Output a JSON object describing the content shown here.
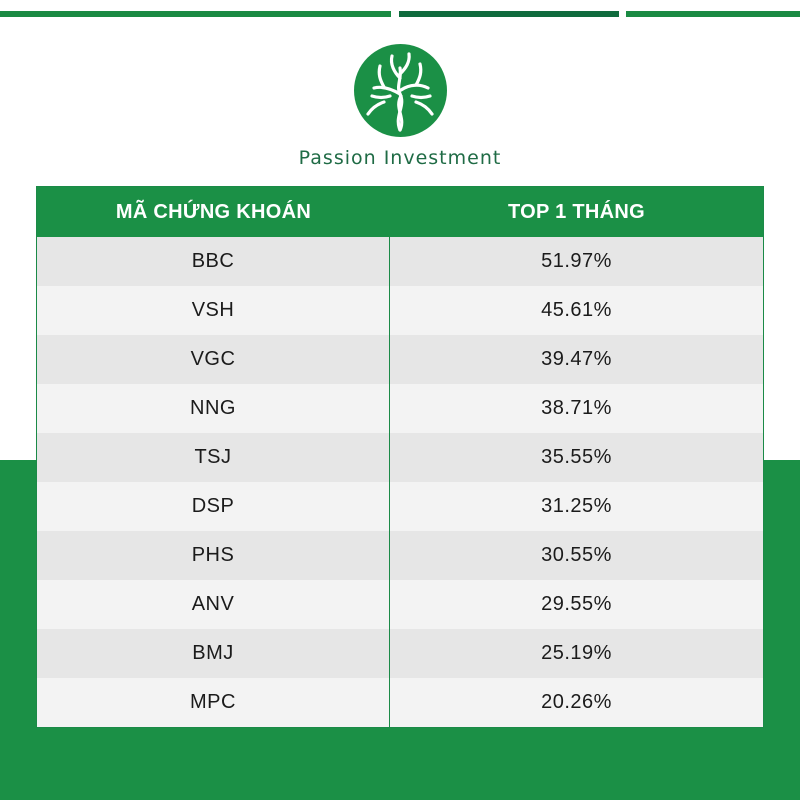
{
  "brand": {
    "name": "Passion Investment",
    "logo_icon": "tree-in-circle-logo",
    "colors": {
      "primary_green": "#1b9046",
      "dark_green": "#0f6b3d",
      "text_green": "#1f6b45"
    }
  },
  "table": {
    "headers": [
      "MÃ CHỨNG KHOÁN",
      "TOP 1 THÁNG"
    ],
    "rows": [
      {
        "ticker": "BBC",
        "value": "51.97%"
      },
      {
        "ticker": "VSH",
        "value": "45.61%"
      },
      {
        "ticker": "VGC",
        "value": "39.47%"
      },
      {
        "ticker": "NNG",
        "value": "38.71%"
      },
      {
        "ticker": "TSJ",
        "value": "35.55%"
      },
      {
        "ticker": "DSP",
        "value": "31.25%"
      },
      {
        "ticker": "PHS",
        "value": "30.55%"
      },
      {
        "ticker": "ANV",
        "value": "29.55%"
      },
      {
        "ticker": "BMJ",
        "value": "25.19%"
      },
      {
        "ticker": "MPC",
        "value": "20.26%"
      }
    ]
  }
}
